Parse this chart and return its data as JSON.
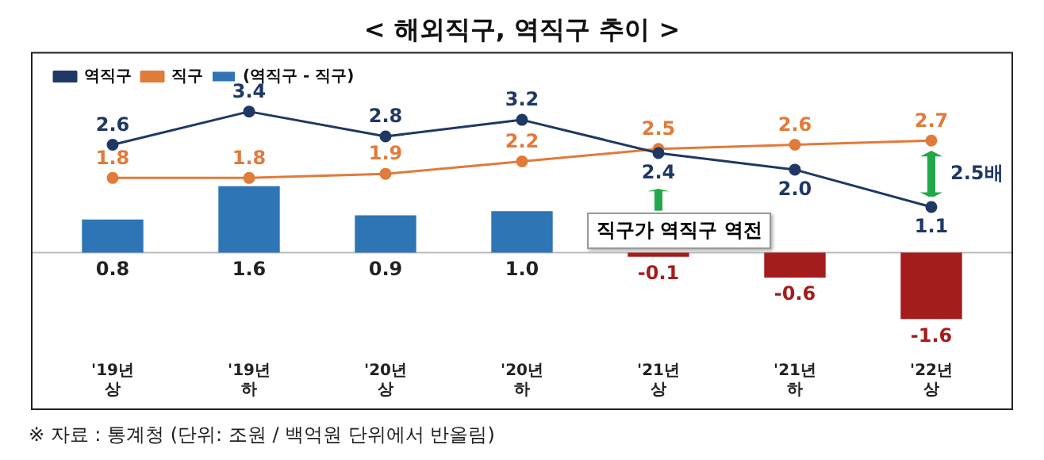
{
  "chart_data": {
    "type": "bar",
    "title": "< 해외직구, 역직구 추이 >",
    "categories": [
      "'19년 상",
      "'19년 하",
      "'20년 상",
      "'20년 하",
      "'21년 상",
      "'21년 하",
      "'22년 상"
    ],
    "series": [
      {
        "name": "(역직구 - 직구)",
        "colors": [
          "#2e75b6",
          "#2e75b6",
          "#2e75b6",
          "#2e75b6",
          "#a51c1c",
          "#a51c1c",
          "#a51c1c"
        ],
        "values": [
          0.8,
          1.6,
          0.9,
          1.0,
          -0.1,
          -0.6,
          -1.6
        ],
        "value_labels": [
          "0.8",
          "1.6",
          "0.9",
          "1.0",
          "-0.1",
          "-0.6",
          "-1.6"
        ]
      },
      {
        "name": "역직구",
        "type": "line",
        "color": "#1f3864",
        "values": [
          2.6,
          3.4,
          2.8,
          3.2,
          2.4,
          2.0,
          1.1
        ],
        "value_labels": [
          "2.6",
          "3.4",
          "2.8",
          "3.2",
          "2.4",
          "2.0",
          "1.1"
        ]
      },
      {
        "name": "직구",
        "type": "line",
        "color": "#e07b39",
        "values": [
          1.8,
          1.8,
          1.9,
          2.2,
          2.5,
          2.6,
          2.7
        ],
        "value_labels": [
          "1.8",
          "1.8",
          "1.9",
          "2.2",
          "2.5",
          "2.6",
          "2.7"
        ]
      }
    ],
    "legend": "top left",
    "marker": "circle",
    "line_style": "solid",
    "annotations": [
      "직구가 역직구 역전",
      "2.5배",
      "※ 자료 : 통계청 (단위: 조원 / 백억원 단위에서 반올림)"
    ]
  }
}
